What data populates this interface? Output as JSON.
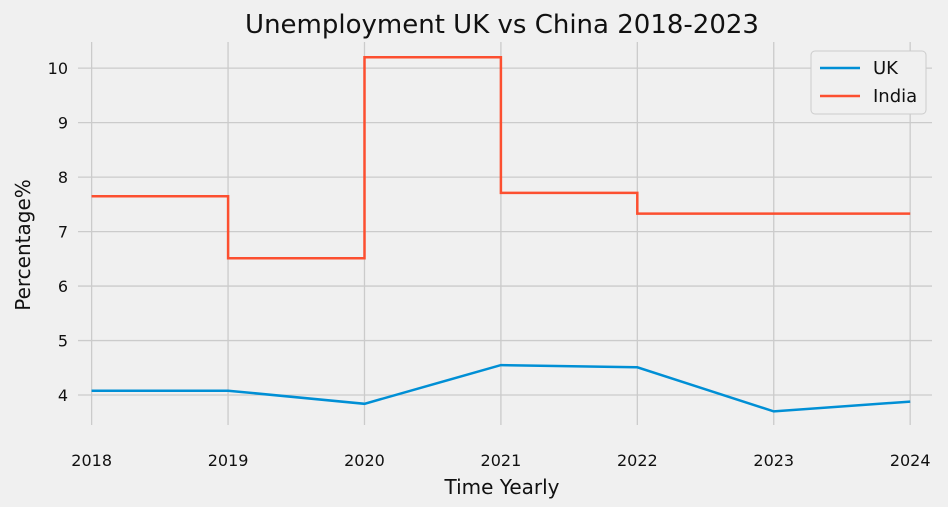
{
  "chart_data": {
    "type": "line",
    "title": "Unemployment UK vs China 2018-2023",
    "xlabel": "Time Yearly",
    "ylabel": "Percentage%",
    "x_ticks": [
      "2018",
      "2019",
      "2020",
      "2021",
      "2022",
      "2023",
      "2024"
    ],
    "y_ticks": [
      "4",
      "5",
      "6",
      "7",
      "8",
      "9",
      "10"
    ],
    "xlim": [
      2017.9,
      2024.16
    ],
    "ylim": [
      3.45,
      10.48
    ],
    "grid": true,
    "legend_position": "top-right",
    "series": [
      {
        "name": "UK",
        "color": "#008fd5",
        "style": "line",
        "x": [
          2018,
          2019,
          2020,
          2021,
          2022,
          2023,
          2024
        ],
        "y": [
          4.08,
          4.08,
          3.84,
          4.55,
          4.51,
          3.7,
          3.88
        ]
      },
      {
        "name": "India",
        "color": "#fc4f30",
        "style": "step-post",
        "x": [
          2018,
          2019,
          2020,
          2021,
          2022,
          2024
        ],
        "y": [
          7.65,
          6.51,
          10.2,
          7.71,
          7.33,
          7.33
        ]
      }
    ]
  }
}
